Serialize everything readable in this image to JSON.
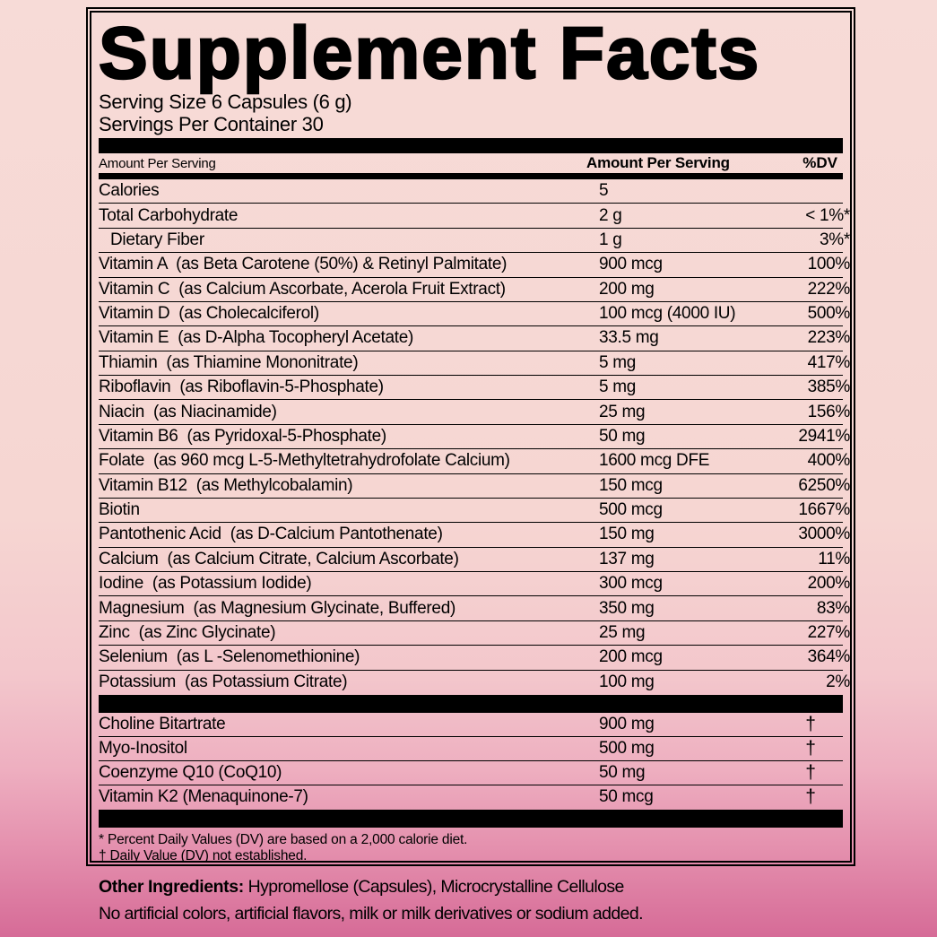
{
  "title": "Supplement Facts",
  "serving_size": "Serving Size 6 Capsules (6 g)",
  "servings_per_container": "Servings Per Container 30",
  "header": {
    "left": "Amount Per Serving",
    "amount": "Amount Per Serving",
    "dv": "%DV"
  },
  "main_rows": [
    {
      "name": "Calories",
      "amount": "5",
      "dv": ""
    },
    {
      "name": "Total Carbohydrate",
      "amount": "2 g",
      "dv": "< 1%*"
    },
    {
      "name": "Dietary Fiber",
      "amount": "1 g",
      "dv": "3%*",
      "indent": true
    },
    {
      "name": "Vitamin A  (as Beta Carotene (50%) & Retinyl Palmitate)",
      "amount": "900 mcg",
      "dv": "100%"
    },
    {
      "name": "Vitamin C  (as Calcium Ascorbate, Acerola Fruit Extract)",
      "amount": "200 mg",
      "dv": "222%"
    },
    {
      "name": "Vitamin D  (as Cholecalciferol)",
      "amount": "100 mcg (4000 IU)",
      "dv": "500%"
    },
    {
      "name": "Vitamin E  (as D-Alpha Tocopheryl Acetate)",
      "amount": "33.5 mg",
      "dv": "223%"
    },
    {
      "name": "Thiamin  (as Thiamine Mononitrate)",
      "amount": "5 mg",
      "dv": "417%"
    },
    {
      "name": "Riboflavin  (as Riboflavin-5-Phosphate)",
      "amount": "5 mg",
      "dv": "385%"
    },
    {
      "name": "Niacin  (as Niacinamide)",
      "amount": "25 mg",
      "dv": "156%"
    },
    {
      "name": "Vitamin B6  (as Pyridoxal-5-Phosphate)",
      "amount": "50 mg",
      "dv": "2941%"
    },
    {
      "name": "Folate  (as 960 mcg L-5-Methyltetrahydrofolate Calcium)",
      "amount": "1600 mcg DFE",
      "dv": "400%"
    },
    {
      "name": "Vitamin B12  (as Methylcobalamin)",
      "amount": "150 mcg",
      "dv": "6250%"
    },
    {
      "name": "Biotin",
      "amount": "500 mcg",
      "dv": "1667%"
    },
    {
      "name": "Pantothenic Acid  (as D-Calcium Pantothenate)",
      "amount": "150 mg",
      "dv": "3000%"
    },
    {
      "name": "Calcium  (as Calcium Citrate, Calcium Ascorbate)",
      "amount": "137 mg",
      "dv": "11%"
    },
    {
      "name": "Iodine  (as Potassium Iodide)",
      "amount": "300 mcg",
      "dv": "200%"
    },
    {
      "name": "Magnesium  (as Magnesium Glycinate, Buffered)",
      "amount": "350 mg",
      "dv": "83%"
    },
    {
      "name": "Zinc  (as Zinc Glycinate)",
      "amount": "25 mg",
      "dv": "227%"
    },
    {
      "name": "Selenium  (as L -Selenomethionine)",
      "amount": "200 mcg",
      "dv": "364%"
    },
    {
      "name": "Potassium  (as Potassium Citrate)",
      "amount": "100 mg",
      "dv": "2%"
    }
  ],
  "secondary_rows": [
    {
      "name": "Choline Bitartrate",
      "amount": "900 mg",
      "dv": "†"
    },
    {
      "name": "Myo-Inositol",
      "amount": "500 mg",
      "dv": "†"
    },
    {
      "name": "Coenzyme Q10 (CoQ10)",
      "amount": "50 mg",
      "dv": "†"
    },
    {
      "name": "Vitamin K2 (Menaquinone-7)",
      "amount": "50 mcg",
      "dv": "†"
    }
  ],
  "footnotes": [
    "* Percent Daily Values (DV) are based on a 2,000 calorie diet.",
    "† Daily Value (DV) not established."
  ],
  "other_ingredients": {
    "label": "Other Ingredients:",
    "rest": " Hypromellose (Capsules), Microcrystalline Cellulose",
    "line2": "No artificial colors, artificial flavors, milk or milk derivatives or sodium added."
  },
  "colors": {
    "background_top": "#f7dbd7",
    "background_bottom": "#d66b97",
    "panel_border": "#000000",
    "bar": "#000000",
    "text": "#000000"
  }
}
